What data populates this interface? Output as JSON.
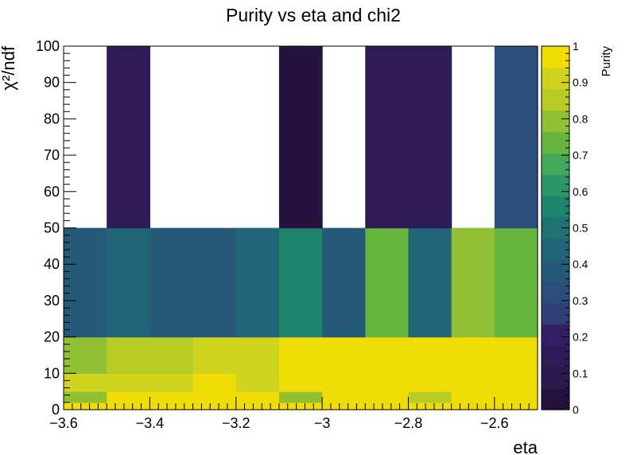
{
  "chart_data": {
    "type": "heatmap",
    "title": "Purity vs eta and chi2",
    "xlabel": "eta",
    "ylabel": "χ²/ndf",
    "zlabel": "Purity",
    "xlim": [
      -3.6,
      -2.5
    ],
    "ylim": [
      0,
      100
    ],
    "zlim": [
      0,
      1
    ],
    "x_ticks": [
      -3.6,
      -3.4,
      -3.2,
      -3.0,
      -2.8,
      -2.6
    ],
    "x_tick_labels": [
      "−3.6",
      "−3.4",
      "−3.2",
      "−3",
      "−2.8",
      "−2.6"
    ],
    "y_ticks": [
      0,
      10,
      20,
      30,
      40,
      50,
      60,
      70,
      80,
      90,
      100
    ],
    "y_tick_labels": [
      "0",
      "10",
      "20",
      "30",
      "40",
      "50",
      "60",
      "70",
      "80",
      "90",
      "100"
    ],
    "z_ticks": [
      0,
      0.1,
      0.2,
      0.3,
      0.4,
      0.5,
      0.6,
      0.7,
      0.8,
      0.9,
      1
    ],
    "z_tick_labels": [
      "0",
      "0.1",
      "0.2",
      "0.3",
      "0.4",
      "0.5",
      "0.6",
      "0.7",
      "0.8",
      "0.9",
      "1"
    ],
    "x_edges": [
      -3.6,
      -3.5,
      -3.4,
      -3.3,
      -3.2,
      -3.1,
      -3.0,
      -2.9,
      -2.8,
      -2.7,
      -2.6,
      -2.5
    ],
    "y_edges": [
      0,
      2,
      5,
      10,
      20,
      50,
      100
    ],
    "values": [
      [
        0.97,
        0.97,
        1.0,
        1.0,
        1.0,
        1.0,
        1.0,
        1.0,
        1.0,
        1.0,
        1.0
      ],
      [
        0.8,
        0.97,
        1.0,
        1.0,
        1.0,
        0.8,
        1.0,
        1.0,
        0.87,
        1.0,
        1.0
      ],
      [
        0.95,
        0.95,
        0.95,
        1.0,
        0.95,
        1.0,
        1.0,
        1.0,
        1.0,
        1.0,
        1.0
      ],
      [
        0.8,
        0.9,
        0.9,
        0.95,
        0.95,
        1.0,
        1.0,
        1.0,
        1.0,
        1.0,
        1.0
      ],
      [
        0.35,
        0.45,
        0.35,
        0.4,
        0.45,
        0.55,
        0.35,
        0.75,
        0.45,
        0.8,
        0.75
      ],
      [
        null,
        0.1,
        null,
        null,
        null,
        0.03,
        null,
        0.1,
        0.15,
        null,
        0.3
      ]
    ],
    "palette": [
      "#25133d",
      "#2c1a4e",
      "#2e1b57",
      "#332064",
      "#2f3f78",
      "#2b4e7a",
      "#245a78",
      "#216677",
      "#1f7272",
      "#1f846c",
      "#2a966a",
      "#44a85a",
      "#66b53f",
      "#91c035",
      "#b7cd25",
      "#d0d41e",
      "#f0dd08"
    ],
    "grid": false,
    "legend": "colorbar-right"
  }
}
